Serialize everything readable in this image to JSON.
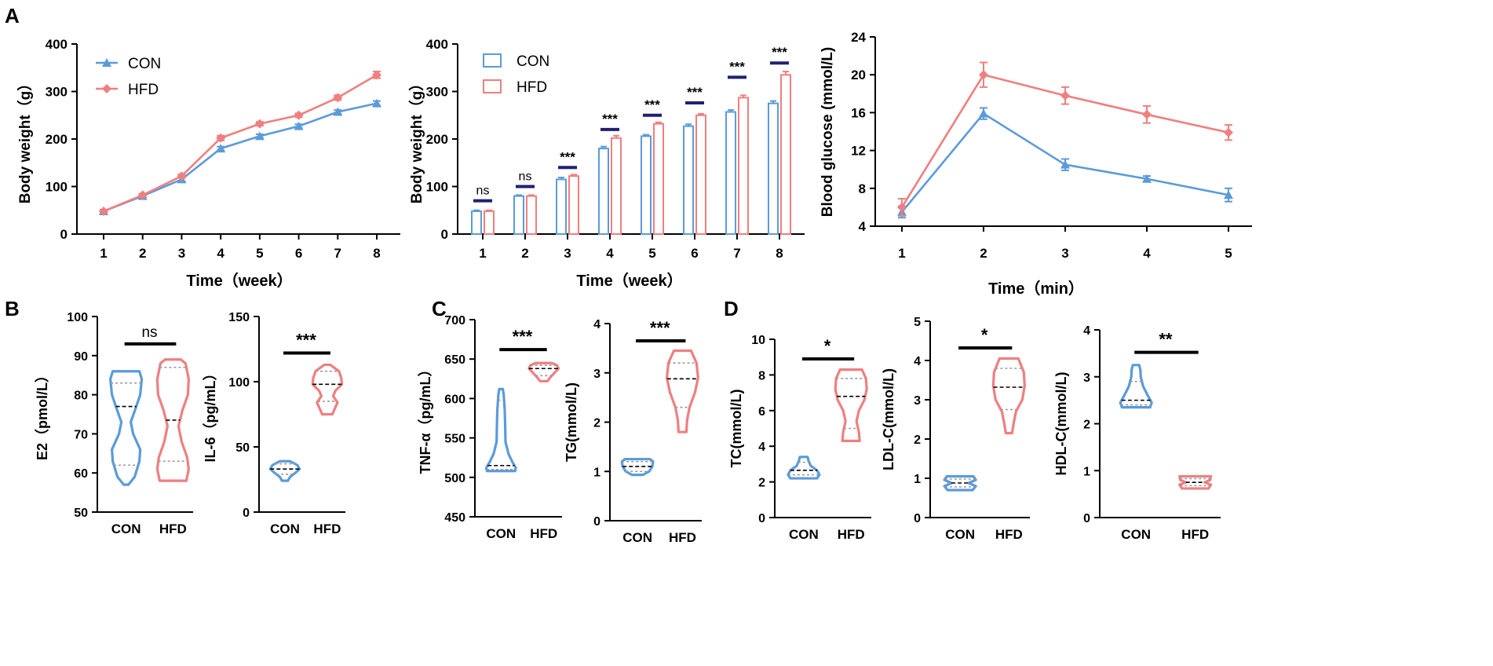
{
  "colors": {
    "con": "#5b9bd9",
    "hfd": "#ef7f80",
    "sig_bar": "#1f2170",
    "axis": "#000000",
    "median": "#000000",
    "quartile": "#9a9a9a"
  },
  "panel_letters": {
    "A": "A",
    "B": "B",
    "C": "C",
    "D": "D"
  },
  "chart_data": [
    {
      "id": "A1",
      "type": "line",
      "xlabel": "Time（week）",
      "ylabel": "Body weight（g）",
      "x": [
        1,
        2,
        3,
        4,
        5,
        6,
        7,
        8
      ],
      "ylim": [
        0,
        400
      ],
      "yticks": [
        0,
        100,
        200,
        300,
        400
      ],
      "legend": [
        {
          "name": "CON",
          "color": "#5b9bd9",
          "marker": "triangle"
        },
        {
          "name": "HFD",
          "color": "#ef7f80",
          "marker": "diamond"
        }
      ],
      "series": [
        {
          "name": "CON",
          "values": [
            48,
            80,
            115,
            180,
            206,
            227,
            257,
            275
          ],
          "err": [
            3,
            3,
            4,
            4,
            4,
            4,
            4,
            5
          ]
        },
        {
          "name": "HFD",
          "values": [
            48,
            82,
            122,
            202,
            232,
            250,
            287,
            335
          ],
          "err": [
            3,
            3,
            4,
            5,
            4,
            4,
            5,
            7
          ]
        }
      ]
    },
    {
      "id": "A2",
      "type": "bar",
      "xlabel": "Time（week）",
      "ylabel": "Body weight（g）",
      "categories": [
        "1",
        "2",
        "3",
        "4",
        "5",
        "6",
        "7",
        "8"
      ],
      "ylim": [
        0,
        400
      ],
      "yticks": [
        0,
        100,
        200,
        300,
        400
      ],
      "legend": [
        {
          "name": "CON",
          "color": "#5b9bd9"
        },
        {
          "name": "HFD",
          "color": "#ef7f80"
        }
      ],
      "series": [
        {
          "name": "CON",
          "values": [
            48,
            80,
            115,
            180,
            206,
            227,
            257,
            275
          ],
          "err": [
            2,
            2,
            4,
            4,
            3,
            4,
            4,
            5
          ]
        },
        {
          "name": "HFD",
          "values": [
            48,
            80,
            122,
            202,
            232,
            250,
            287,
            335
          ],
          "err": [
            2,
            2,
            3,
            5,
            3,
            3,
            5,
            7
          ]
        }
      ],
      "significance": [
        "ns",
        "ns",
        "***",
        "***",
        "***",
        "***",
        "***",
        "***"
      ],
      "sig_bar_y": [
        70,
        100,
        140,
        220,
        250,
        276,
        330,
        360
      ]
    },
    {
      "id": "A3",
      "type": "line",
      "xlabel": "Time（min）",
      "ylabel": "Blood glucose (mmol/L)",
      "x": [
        1,
        2,
        3,
        4,
        5
      ],
      "ylim": [
        4,
        24
      ],
      "yticks": [
        4,
        8,
        12,
        16,
        20,
        24
      ],
      "series": [
        {
          "name": "CON",
          "values": [
            5.5,
            15.9,
            10.5,
            9.0,
            7.3
          ],
          "err": [
            0.6,
            0.6,
            0.6,
            0.3,
            0.7
          ]
        },
        {
          "name": "HFD",
          "values": [
            6.0,
            20.0,
            17.8,
            15.8,
            13.9
          ],
          "err": [
            0.9,
            1.3,
            0.9,
            0.9,
            0.8
          ]
        }
      ]
    },
    {
      "id": "B1",
      "type": "violin",
      "ylabel": "E2（pmol/L）",
      "categories": [
        "CON",
        "HFD"
      ],
      "ylim": [
        50,
        100
      ],
      "yticks": [
        50,
        60,
        70,
        80,
        90,
        100
      ],
      "significance": "ns",
      "sig_bar_y": 93,
      "groups": [
        {
          "name": "CON",
          "min": 57,
          "max": 86,
          "median": 77,
          "q1": 62,
          "q3": 83,
          "profile": [
            [
              57,
              0.15
            ],
            [
              59,
              0.55
            ],
            [
              63,
              0.85
            ],
            [
              66,
              0.9
            ],
            [
              70,
              0.45
            ],
            [
              73,
              0.3
            ],
            [
              77,
              0.65
            ],
            [
              80,
              0.9
            ],
            [
              84,
              1.0
            ],
            [
              86,
              0.85
            ]
          ]
        },
        {
          "name": "HFD",
          "min": 58,
          "max": 89,
          "median": 73.5,
          "q1": 63,
          "q3": 87,
          "profile": [
            [
              58,
              0.85
            ],
            [
              61,
              1.0
            ],
            [
              64,
              0.9
            ],
            [
              68,
              0.55
            ],
            [
              72,
              0.35
            ],
            [
              76,
              0.6
            ],
            [
              80,
              0.95
            ],
            [
              84,
              1.0
            ],
            [
              88,
              0.8
            ],
            [
              89,
              0.5
            ]
          ]
        }
      ]
    },
    {
      "id": "B2",
      "type": "violin",
      "ylabel": "IL-6（pg/mL）",
      "categories": [
        "CON",
        "HFD"
      ],
      "ylim": [
        0,
        150
      ],
      "yticks": [
        0,
        50,
        100,
        150
      ],
      "significance": "***",
      "sig_bar_y": 122,
      "groups": [
        {
          "name": "CON",
          "min": 24,
          "max": 39,
          "median": 33,
          "q1": 29,
          "q3": 37,
          "profile": [
            [
              24,
              0.2
            ],
            [
              27,
              0.35
            ],
            [
              30,
              0.7
            ],
            [
              33,
              1.0
            ],
            [
              36,
              0.85
            ],
            [
              39,
              0.35
            ]
          ]
        },
        {
          "name": "HFD",
          "min": 75,
          "max": 113,
          "median": 98,
          "q1": 85,
          "q3": 108,
          "profile": [
            [
              75,
              0.35
            ],
            [
              79,
              0.5
            ],
            [
              84,
              0.7
            ],
            [
              89,
              0.4
            ],
            [
              93,
              0.55
            ],
            [
              98,
              1.0
            ],
            [
              103,
              0.95
            ],
            [
              108,
              0.8
            ],
            [
              113,
              0.2
            ]
          ]
        }
      ]
    },
    {
      "id": "C1",
      "type": "violin",
      "ylabel": "TNF-α（pg/mL）",
      "categories": [
        "CON",
        "HFD"
      ],
      "ylim": [
        450,
        700
      ],
      "yticks": [
        450,
        500,
        550,
        600,
        650,
        700
      ],
      "significance": "***",
      "sig_bar_y": 662,
      "groups": [
        {
          "name": "CON",
          "min": 508,
          "max": 612,
          "median": 515,
          "q1": 510,
          "q3": 598,
          "profile": [
            [
              508,
              0.95
            ],
            [
              512,
              1.0
            ],
            [
              520,
              0.75
            ],
            [
              530,
              0.5
            ],
            [
              545,
              0.3
            ],
            [
              565,
              0.28
            ],
            [
              585,
              0.25
            ],
            [
              605,
              0.18
            ],
            [
              612,
              0.12
            ]
          ]
        },
        {
          "name": "HFD",
          "min": 622,
          "max": 645,
          "median": 638,
          "q1": 629,
          "q3": 642,
          "profile": [
            [
              622,
              0.25
            ],
            [
              627,
              0.45
            ],
            [
              633,
              0.75
            ],
            [
              638,
              1.0
            ],
            [
              642,
              0.9
            ],
            [
              645,
              0.55
            ]
          ]
        }
      ]
    },
    {
      "id": "C2",
      "type": "violin",
      "ylabel": "TG(mmol/L)",
      "categories": [
        "CON",
        "HFD"
      ],
      "ylim": [
        0,
        4
      ],
      "yticks": [
        0,
        1,
        2,
        3,
        4
      ],
      "significance": "***",
      "sig_bar_y": 3.65,
      "groups": [
        {
          "name": "CON",
          "min": 0.93,
          "max": 1.25,
          "median": 1.1,
          "q1": 1.0,
          "q3": 1.2,
          "profile": [
            [
              0.93,
              0.35
            ],
            [
              1.0,
              0.75
            ],
            [
              1.1,
              0.95
            ],
            [
              1.2,
              1.0
            ],
            [
              1.25,
              0.8
            ]
          ]
        },
        {
          "name": "HFD",
          "min": 1.8,
          "max": 3.45,
          "median": 2.88,
          "q1": 2.3,
          "q3": 3.2,
          "profile": [
            [
              1.8,
              0.25
            ],
            [
              2.05,
              0.3
            ],
            [
              2.3,
              0.45
            ],
            [
              2.6,
              0.8
            ],
            [
              2.9,
              1.0
            ],
            [
              3.2,
              0.9
            ],
            [
              3.45,
              0.55
            ]
          ]
        }
      ]
    },
    {
      "id": "D1",
      "type": "violin",
      "ylabel": "TC(mmol/L)",
      "categories": [
        "CON",
        "HFD"
      ],
      "ylim": [
        0,
        10
      ],
      "yticks": [
        0,
        2,
        4,
        6,
        8,
        10
      ],
      "significance": "*",
      "sig_bar_y": 8.9,
      "groups": [
        {
          "name": "CON",
          "min": 2.2,
          "max": 3.4,
          "median": 2.65,
          "q1": 2.4,
          "q3": 3.1,
          "profile": [
            [
              2.2,
              0.85
            ],
            [
              2.4,
              1.0
            ],
            [
              2.65,
              0.85
            ],
            [
              2.9,
              0.45
            ],
            [
              3.2,
              0.3
            ],
            [
              3.4,
              0.25
            ]
          ]
        },
        {
          "name": "HFD",
          "min": 4.3,
          "max": 8.3,
          "median": 6.8,
          "q1": 5.0,
          "q3": 7.8,
          "profile": [
            [
              4.3,
              0.55
            ],
            [
              4.8,
              0.5
            ],
            [
              5.4,
              0.35
            ],
            [
              6.0,
              0.5
            ],
            [
              6.6,
              0.85
            ],
            [
              7.2,
              1.0
            ],
            [
              7.8,
              0.95
            ],
            [
              8.3,
              0.7
            ]
          ]
        }
      ]
    },
    {
      "id": "D2",
      "type": "violin",
      "ylabel": "LDL-C(mmol/L)",
      "categories": [
        "CON",
        "HFD"
      ],
      "ylim": [
        0,
        5
      ],
      "yticks": [
        0,
        1,
        2,
        3,
        4,
        5
      ],
      "significance": "*",
      "sig_bar_y": 4.32,
      "groups": [
        {
          "name": "CON",
          "min": 0.7,
          "max": 1.05,
          "median": 0.88,
          "q1": 0.78,
          "q3": 0.98,
          "profile": [
            [
              0.7,
              0.8
            ],
            [
              0.8,
              1.0
            ],
            [
              0.88,
              0.55
            ],
            [
              0.96,
              1.0
            ],
            [
              1.05,
              0.85
            ]
          ]
        },
        {
          "name": "HFD",
          "min": 2.15,
          "max": 4.05,
          "median": 3.32,
          "q1": 2.75,
          "q3": 3.8,
          "profile": [
            [
              2.15,
              0.2
            ],
            [
              2.4,
              0.3
            ],
            [
              2.7,
              0.45
            ],
            [
              3.0,
              0.85
            ],
            [
              3.35,
              1.0
            ],
            [
              3.7,
              0.95
            ],
            [
              4.05,
              0.6
            ]
          ]
        }
      ]
    },
    {
      "id": "D3",
      "type": "violin",
      "ylabel": "HDL-C(mmol/L)",
      "categories": [
        "CON",
        "HFD"
      ],
      "ylim": [
        0,
        4
      ],
      "yticks": [
        0,
        1,
        2,
        3,
        4
      ],
      "significance": "**",
      "sig_bar_y": 3.52,
      "groups": [
        {
          "name": "CON",
          "min": 2.35,
          "max": 3.25,
          "median": 2.5,
          "q1": 2.4,
          "q3": 2.9,
          "profile": [
            [
              2.35,
              0.9
            ],
            [
              2.45,
              1.0
            ],
            [
              2.6,
              0.75
            ],
            [
              2.8,
              0.45
            ],
            [
              3.0,
              0.3
            ],
            [
              3.15,
              0.28
            ],
            [
              3.25,
              0.2
            ]
          ]
        },
        {
          "name": "HFD",
          "min": 0.62,
          "max": 0.88,
          "median": 0.75,
          "q1": 0.68,
          "q3": 0.83,
          "profile": [
            [
              0.62,
              0.85
            ],
            [
              0.7,
              1.0
            ],
            [
              0.75,
              0.6
            ],
            [
              0.8,
              0.95
            ],
            [
              0.88,
              1.0
            ]
          ]
        }
      ]
    }
  ]
}
